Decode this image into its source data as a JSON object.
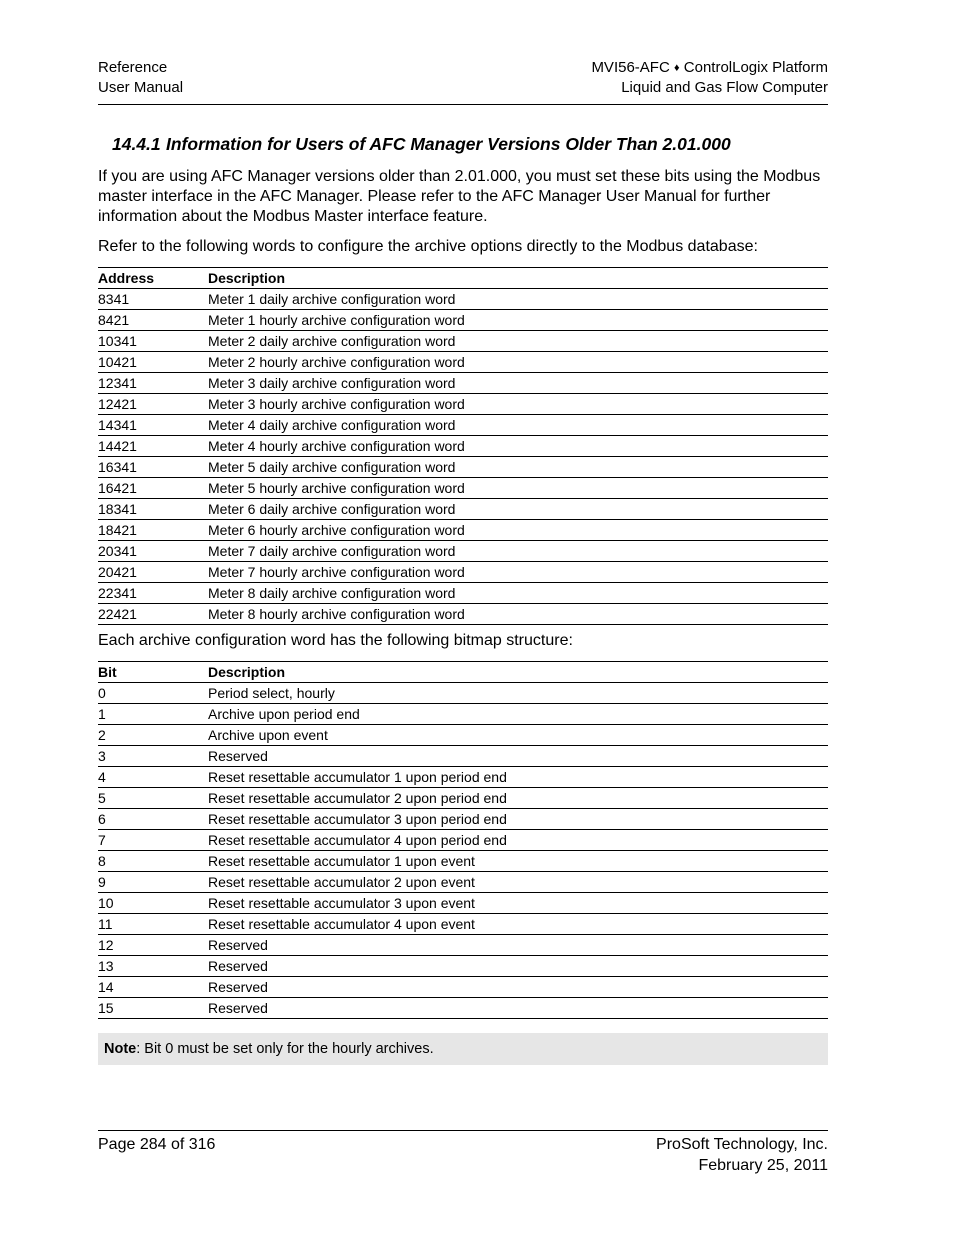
{
  "header": {
    "left_line1": "Reference",
    "left_line2": "User Manual",
    "right_prefix": "MVI56-AFC",
    "right_separator": "♦",
    "right_suffix": "ControlLogix Platform",
    "right_line2": "Liquid and Gas Flow Computer"
  },
  "section": {
    "number": "14.4.1",
    "title": "Information for Users of AFC Manager Versions Older Than 2.01.000"
  },
  "paragraphs": {
    "p1": "If you are using AFC Manager versions older than 2.01.000, you must set these bits using the Modbus master interface in the AFC Manager. Please refer to the AFC Manager User Manual for further information about the Modbus Master interface feature.",
    "p2": "Refer to the following words to configure the archive options directly to the Modbus database:",
    "p3": "Each archive configuration word has the following bitmap structure:"
  },
  "address_table": {
    "headers": [
      "Address",
      "Description"
    ],
    "rows": [
      [
        "8341",
        "Meter 1 daily archive configuration word"
      ],
      [
        "8421",
        "Meter 1 hourly archive configuration word"
      ],
      [
        "10341",
        "Meter 2 daily archive configuration word"
      ],
      [
        "10421",
        "Meter 2 hourly archive configuration word"
      ],
      [
        "12341",
        "Meter 3 daily archive configuration word"
      ],
      [
        "12421",
        "Meter 3 hourly archive configuration word"
      ],
      [
        "14341",
        "Meter 4 daily archive configuration word"
      ],
      [
        "14421",
        "Meter 4 hourly archive configuration word"
      ],
      [
        "16341",
        "Meter 5 daily archive configuration word"
      ],
      [
        "16421",
        "Meter 5 hourly archive configuration word"
      ],
      [
        "18341",
        "Meter 6 daily archive configuration word"
      ],
      [
        "18421",
        "Meter 6 hourly archive configuration word"
      ],
      [
        "20341",
        "Meter 7 daily archive configuration word"
      ],
      [
        "20421",
        "Meter 7 hourly archive configuration word"
      ],
      [
        "22341",
        "Meter 8 daily archive configuration word"
      ],
      [
        "22421",
        "Meter 8 hourly archive configuration word"
      ]
    ]
  },
  "bit_table": {
    "headers": [
      "Bit",
      "Description"
    ],
    "rows": [
      [
        "0",
        "Period select, hourly"
      ],
      [
        "1",
        "Archive upon period end"
      ],
      [
        "2",
        "Archive upon event"
      ],
      [
        "3",
        "Reserved"
      ],
      [
        "4",
        "Reset resettable accumulator 1 upon period end"
      ],
      [
        "5",
        "Reset resettable accumulator 2 upon period end"
      ],
      [
        "6",
        "Reset resettable accumulator 3 upon period end"
      ],
      [
        "7",
        "Reset resettable accumulator 4 upon period end"
      ],
      [
        "8",
        "Reset resettable accumulator 1 upon event"
      ],
      [
        "9",
        "Reset resettable accumulator 2 upon event"
      ],
      [
        "10",
        "Reset resettable accumulator 3 upon event"
      ],
      [
        "11",
        "Reset resettable accumulator 4 upon event"
      ],
      [
        "12",
        "Reserved"
      ],
      [
        "13",
        "Reserved"
      ],
      [
        "14",
        "Reserved"
      ],
      [
        "15",
        "Reserved"
      ]
    ]
  },
  "note": {
    "label": "Note",
    "text": ": Bit 0 must be set only for the hourly archives."
  },
  "footer": {
    "left": "Page 284 of 316",
    "right_line1": "ProSoft Technology, Inc.",
    "right_line2": "February 25, 2011"
  }
}
